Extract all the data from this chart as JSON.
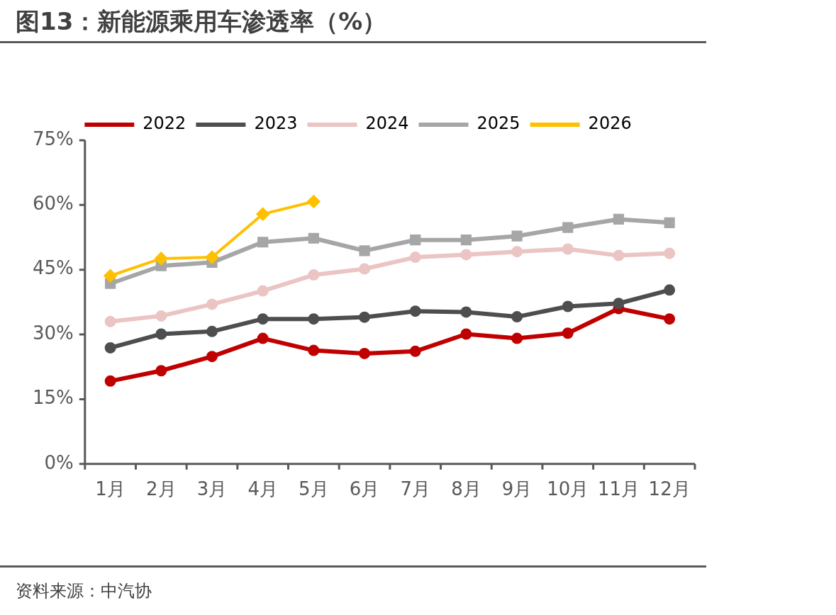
{
  "chart_data": {
    "type": "line",
    "title": "图13：新能源乘用车渗透率（%）",
    "categories": [
      "1月",
      "2月",
      "3月",
      "4月",
      "5月",
      "6月",
      "7月",
      "8月",
      "9月",
      "10月",
      "11月",
      "12月"
    ],
    "series": [
      {
        "name": "2022",
        "color": "#c00000",
        "marker": "circle",
        "values": [
          19.2,
          21.6,
          24.9,
          29.1,
          26.3,
          25.6,
          26.1,
          30.1,
          29.1,
          30.3,
          36.0,
          33.6
        ]
      },
      {
        "name": "2023",
        "color": "#4d4e50",
        "marker": "circle",
        "values": [
          26.9,
          30.1,
          30.7,
          33.6,
          33.6,
          34.0,
          35.4,
          35.2,
          34.1,
          36.5,
          37.2,
          40.3
        ]
      },
      {
        "name": "2024",
        "color": "#ebc4c4",
        "marker": "circle",
        "values": [
          33.0,
          34.3,
          37.0,
          40.1,
          43.8,
          45.2,
          47.9,
          48.5,
          49.2,
          49.8,
          48.3,
          48.8
        ]
      },
      {
        "name": "2025",
        "color": "#a6a6a6",
        "marker": "square",
        "values": [
          41.8,
          45.9,
          46.7,
          51.4,
          52.3,
          49.4,
          51.9,
          51.9,
          52.8,
          54.8,
          56.7,
          55.9
        ]
      },
      {
        "name": "2026",
        "color": "#ffc000",
        "marker": "diamond",
        "values": [
          43.6,
          47.6,
          47.9,
          57.9,
          60.8,
          null,
          null,
          null,
          null,
          null,
          null,
          null
        ]
      }
    ],
    "ylim": [
      0,
      75
    ],
    "yticks": [
      {
        "value": 0,
        "label": "0%"
      },
      {
        "value": 15,
        "label": "15%"
      },
      {
        "value": 30,
        "label": "30%"
      },
      {
        "value": 45,
        "label": "45%"
      },
      {
        "value": 60,
        "label": "60%"
      },
      {
        "value": 75,
        "label": "75%"
      }
    ],
    "grid": false,
    "legend": "top",
    "annotations": [
      "资料来源：中汽协"
    ]
  }
}
